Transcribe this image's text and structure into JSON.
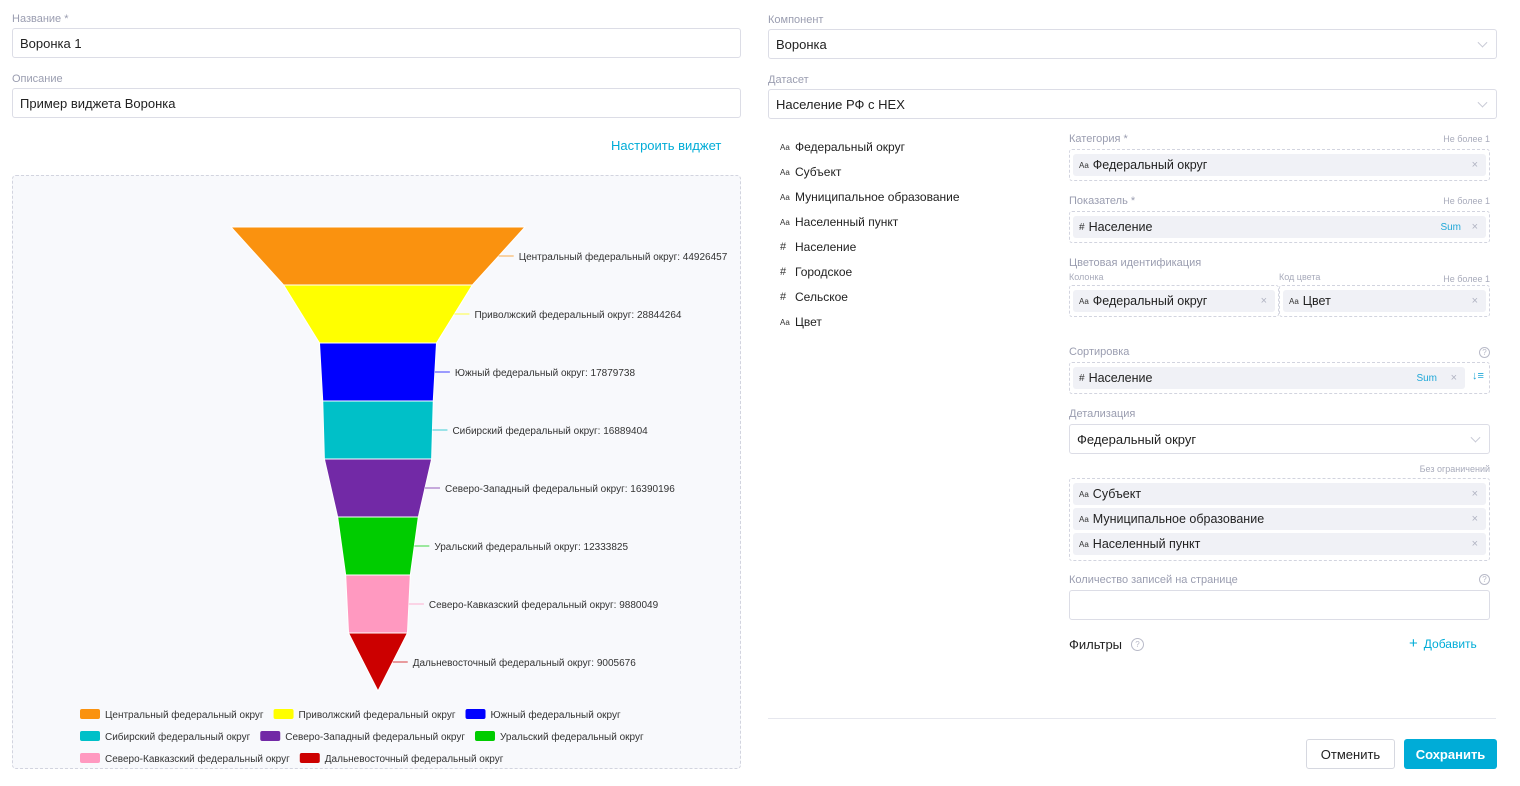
{
  "name": {
    "label": "Название *",
    "value": "Воронка 1"
  },
  "description": {
    "label": "Описание",
    "value": "Пример виджета Воронка"
  },
  "configure_link": "Настроить виджет",
  "component": {
    "label": "Компонент",
    "value": "Воронка"
  },
  "dataset": {
    "label": "Датасет",
    "value": "Население РФ с HEX"
  },
  "fields": [
    {
      "type": "Aa",
      "name": "Федеральный округ"
    },
    {
      "type": "Aa",
      "name": "Субъект"
    },
    {
      "type": "Aa",
      "name": "Муниципальное образование"
    },
    {
      "type": "Aa",
      "name": "Населенный пункт"
    },
    {
      "type": "#",
      "name": "Население"
    },
    {
      "type": "#",
      "name": "Городское"
    },
    {
      "type": "#",
      "name": "Сельское"
    },
    {
      "type": "Aa",
      "name": "Цвет"
    }
  ],
  "category": {
    "label": "Категория *",
    "limit": "Не более 1",
    "chip": {
      "type": "Aa",
      "name": "Федеральный округ"
    }
  },
  "metric": {
    "label": "Показатель *",
    "limit": "Не более 1",
    "chip": {
      "type": "#",
      "name": "Население",
      "agg": "Sum"
    }
  },
  "color_id": {
    "label": "Цветовая идентификация",
    "column_label": "Колонка",
    "code_label": "Код цвета",
    "limit": "Не более 1",
    "column_chip": {
      "type": "Aa",
      "name": "Федеральный округ"
    },
    "code_chip": {
      "type": "Aa",
      "name": "Цвет"
    }
  },
  "sorting": {
    "label": "Сортировка",
    "chip": {
      "type": "#",
      "name": "Население",
      "agg": "Sum"
    }
  },
  "detail": {
    "label": "Детализация",
    "value": "Федеральный округ",
    "limit": "Без ограничений",
    "chips": [
      {
        "type": "Aa",
        "name": "Субъект"
      },
      {
        "type": "Aa",
        "name": "Муниципальное образование"
      },
      {
        "type": "Aa",
        "name": "Населенный пункт"
      }
    ]
  },
  "page_size": {
    "label": "Количество записей на странице",
    "value": ""
  },
  "filters": {
    "label": "Фильтры",
    "add": "Добавить"
  },
  "buttons": {
    "cancel": "Отменить",
    "save": "Сохранить"
  },
  "colors": {
    "accent": "#00acd7"
  },
  "chart_data": {
    "type": "funnel",
    "categories": [
      "Центральный федеральный округ",
      "Приволжский федеральный округ",
      "Южный федеральный округ",
      "Сибирский федеральный округ",
      "Северо-Западный федеральный округ",
      "Уральский федеральный округ",
      "Северо-Кавказский федеральный округ",
      "Дальневосточный федеральный округ"
    ],
    "values": [
      44926457,
      28844264,
      17879738,
      16889404,
      16390196,
      12333825,
      9880049,
      9005676
    ],
    "colors": [
      "#fa920f",
      "#ffff00",
      "#0000ff",
      "#00c0c8",
      "#7229a6",
      "#00cc00",
      "#ff99c0",
      "#cc0000"
    ],
    "labels": [
      "Центральный федеральный округ: 44926457",
      "Приволжский федеральный округ: 28844264",
      "Южный федеральный округ: 17879738",
      "Сибирский федеральный округ: 16889404",
      "Северо-Западный федеральный округ: 16390196",
      "Уральский федеральный округ: 12333825",
      "Северо-Кавказский федеральный округ: 9880049",
      "Дальневосточный федеральный округ: 9005676"
    ],
    "legend_position": "bottom"
  }
}
